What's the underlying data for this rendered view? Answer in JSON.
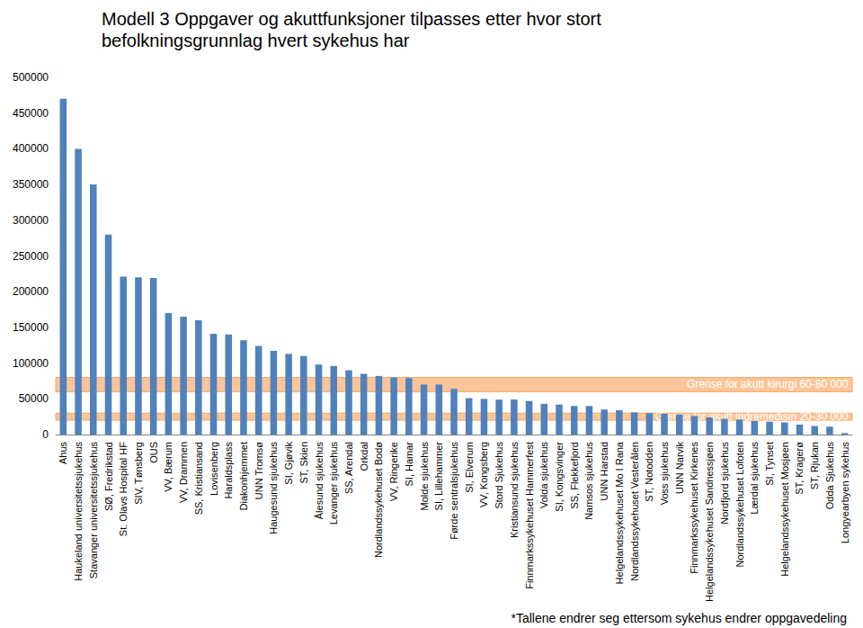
{
  "chart_data": {
    "type": "bar",
    "title": "Modell 3 Oppgaver og akuttfunksjoner tilpasses etter hvor stort befolkningsgrunnlag hvert sykehus har",
    "categories": [
      "Ahus",
      "Haukeland universitetssjukehus",
      "Stavanger universitetssjukehus",
      "SØ, Fredrikstad",
      "St. Olavs Hospital HF",
      "SIV, Tønsberg",
      "OUS",
      "VV, Bærum",
      "VV, Drammen",
      "SS, Kristiansand",
      "Lovisenberg",
      "Haraldsplass",
      "Diakonhjemmet",
      "UNN Tromsø",
      "Haugesund sjukehus",
      "SI, Gjøvik",
      "ST, Skien",
      "Ålesund sjukehus",
      "Levanger sjukehus",
      "SS, Arendal",
      "Orkdal",
      "Nordlandssykehuset Bodø",
      "VV, Ringerike",
      "SI, Hamar",
      "Molde sjukehus",
      "SI, Lillehammer",
      "Førde sentralsjukehus",
      "SI, Elverum",
      "VV, Kongsberg",
      "Stord Sjukehus",
      "Kristiansund sjukehus",
      "Finnmarkssykehuset Hammerfest",
      "Volda sjukehus",
      "SI, Kongsvinger",
      "SS, Flekkefjord",
      "Namsos sjukehus",
      "UNN Harstad",
      "Helgelandssykehuset Mo I Rana",
      "Nordlandssykehuset Vesterålen",
      "ST, Notodden",
      "Voss sjukehus",
      "UNN Narvik",
      "Finnmarkssykehuset Kirkenes",
      "Helgelandssykehuset Sandnessjøen",
      "Nordfjord sjukehus",
      "Nordlandssykehuset Lofoten",
      "Lærdal sjukehus",
      "SI, Tynset",
      "Helgelandssykehuset Mosjøen",
      "ST, Kragerø",
      "ST, Rjukan",
      "Odda Sjukehus",
      "Longyearbyen sykehus"
    ],
    "values": [
      470000,
      400000,
      350000,
      280000,
      221000,
      220000,
      219000,
      170000,
      165000,
      160000,
      141000,
      140000,
      132000,
      124000,
      117000,
      113000,
      110000,
      98000,
      96000,
      90000,
      85000,
      82000,
      80000,
      79000,
      70000,
      70000,
      64000,
      51000,
      50000,
      49000,
      49000,
      47000,
      43000,
      42000,
      40000,
      40000,
      35000,
      34000,
      31000,
      30000,
      29000,
      28000,
      26000,
      24000,
      22000,
      21000,
      19000,
      18000,
      17000,
      14000,
      12000,
      11000,
      2000
    ],
    "color": "#4f81bd",
    "ylim": [
      0,
      500000
    ],
    "yticks": [
      0,
      50000,
      100000,
      150000,
      200000,
      250000,
      300000,
      350000,
      400000,
      450000,
      500000
    ],
    "grid": false,
    "bands": [
      {
        "label": "Grense for akutt kirurgi 60-80 000",
        "from": 60000,
        "to": 80000
      },
      {
        "label": "Grense for akutt indremedisin 20-30 000",
        "from": 20000,
        "to": 30000
      }
    ],
    "annotations": [
      "*Tallene endrer seg ettersom sykehus endrer oppgavedeling"
    ]
  }
}
